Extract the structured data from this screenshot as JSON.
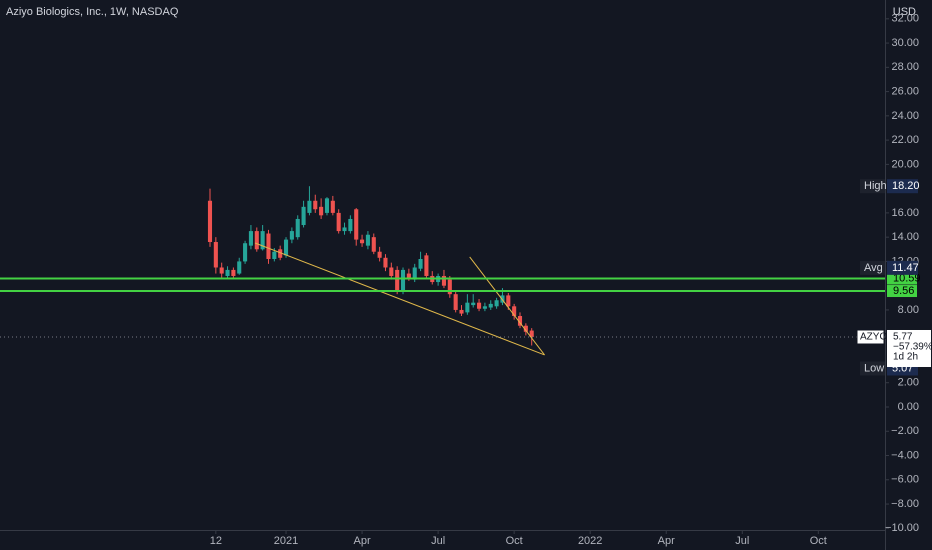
{
  "chart_data": {
    "type": "candlestick",
    "title": "Aziyo Biologics, Inc., 1W, NASDAQ",
    "currency": "USD",
    "x": [
      -1,
      0,
      1,
      2,
      3,
      4,
      5,
      6,
      7,
      8,
      9,
      10,
      11,
      12,
      13,
      14,
      15,
      16,
      17,
      18,
      19,
      20,
      21,
      22,
      23,
      24,
      25,
      26,
      27,
      28,
      29,
      30,
      31,
      32,
      33,
      34,
      35,
      36,
      37,
      38,
      39,
      40,
      41,
      42,
      43,
      44,
      45,
      46,
      47,
      48,
      49,
      50,
      51,
      52,
      53,
      54
    ],
    "open": [
      17.0,
      13.6,
      11.5,
      10.8,
      11.3,
      11.0,
      12.0,
      13.3,
      14.5,
      13.0,
      14.3,
      12.2,
      13.0,
      12.5,
      13.8,
      14.0,
      15.0,
      16.0,
      17.0,
      16.5,
      16.0,
      17.0,
      16.0,
      14.5,
      14.5,
      16.3,
      13.8,
      13.3,
      14.0,
      12.8,
      12.3,
      11.5,
      11.3,
      9.5,
      11.0,
      10.5,
      11.4,
      12.5,
      10.8,
      10.3,
      10.8,
      10.5,
      9.3,
      8.0,
      7.8,
      8.4,
      8.6,
      8.1,
      8.2,
      8.3,
      8.6,
      9.2,
      8.3,
      7.5,
      6.7,
      6.3
    ],
    "high": [
      18.0,
      14.0,
      11.9,
      11.6,
      11.5,
      12.3,
      13.7,
      15.0,
      14.8,
      15.0,
      14.6,
      13.1,
      13.3,
      14.0,
      14.8,
      15.8,
      17.0,
      18.2,
      17.5,
      17.2,
      17.3,
      17.4,
      16.3,
      15.2,
      15.8,
      16.4,
      14.2,
      14.5,
      14.3,
      13.2,
      12.6,
      11.9,
      11.6,
      11.5,
      11.4,
      11.8,
      12.8,
      12.7,
      11.2,
      11.0,
      11.3,
      10.8,
      9.5,
      8.4,
      9.3,
      9.3,
      8.9,
      8.6,
      8.8,
      9.0,
      9.8,
      9.4,
      8.5,
      7.8,
      6.9,
      6.5
    ],
    "low": [
      13.2,
      11.0,
      10.6,
      10.6,
      10.6,
      10.9,
      11.8,
      13.0,
      12.8,
      12.9,
      11.8,
      12.0,
      12.1,
      12.3,
      13.5,
      13.8,
      14.8,
      15.8,
      16.0,
      15.5,
      15.8,
      15.8,
      14.3,
      14.2,
      14.3,
      13.3,
      13.2,
      13.0,
      12.6,
      12.0,
      11.2,
      10.5,
      9.3,
      9.3,
      10.4,
      10.3,
      11.2,
      10.6,
      10.1,
      10.0,
      9.8,
      9.0,
      7.8,
      7.5,
      7.6,
      8.2,
      7.9,
      7.9,
      8.0,
      8.1,
      8.4,
      8.0,
      7.2,
      6.5,
      5.9,
      5.07
    ],
    "close": [
      13.6,
      11.5,
      11.0,
      11.3,
      10.8,
      12.0,
      13.5,
      14.5,
      13.0,
      14.5,
      12.2,
      12.8,
      12.3,
      13.8,
      14.5,
      15.5,
      16.5,
      17.0,
      16.3,
      15.8,
      17.2,
      16.0,
      14.5,
      14.8,
      15.5,
      13.8,
      13.5,
      14.2,
      12.8,
      12.3,
      11.5,
      10.8,
      9.5,
      11.3,
      10.6,
      11.5,
      12.2,
      10.8,
      10.3,
      10.8,
      10.0,
      9.3,
      8.0,
      7.7,
      8.6,
      8.6,
      8.1,
      8.3,
      8.5,
      8.8,
      9.2,
      8.3,
      7.5,
      6.7,
      6.2,
      5.77
    ],
    "up_color": "#26a69a",
    "down_color": "#ef5350",
    "xlim": [
      -36.9,
      114.4
    ],
    "xticks": [
      {
        "value": 0,
        "label": "12"
      },
      {
        "value": 12,
        "label": "2021"
      },
      {
        "value": 25,
        "label": "Apr"
      },
      {
        "value": 38,
        "label": "Jul"
      },
      {
        "value": 51,
        "label": "Oct"
      },
      {
        "value": 64,
        "label": "2022"
      },
      {
        "value": 77,
        "label": "Apr"
      },
      {
        "value": 90,
        "label": "Jul"
      },
      {
        "value": 103,
        "label": "Oct"
      }
    ],
    "ylim": [
      -10.14,
      33.55
    ],
    "yticks": [
      {
        "value": 32,
        "label": "32.00"
      },
      {
        "value": 30,
        "label": "30.00"
      },
      {
        "value": 28,
        "label": "28.00"
      },
      {
        "value": 26,
        "label": "26.00"
      },
      {
        "value": 24,
        "label": "24.00"
      },
      {
        "value": 22,
        "label": "22.00"
      },
      {
        "value": 20,
        "label": "20.00"
      },
      {
        "value": 16,
        "label": "16.00"
      },
      {
        "value": 14,
        "label": "14.00"
      },
      {
        "value": 12,
        "label": "12.00"
      },
      {
        "value": 8,
        "label": "8.00"
      },
      {
        "value": 2,
        "label": "2.00"
      },
      {
        "value": 0,
        "label": "0.00"
      },
      {
        "value": -2,
        "label": "−2.00"
      },
      {
        "value": -4,
        "label": "−4.00"
      },
      {
        "value": -6,
        "label": "−6.00"
      },
      {
        "value": -8,
        "label": "−8.00"
      },
      {
        "value": -10,
        "label": "−10.00"
      }
    ],
    "levels": {
      "values": [
        10.59,
        9.56
      ],
      "color": "#43d243"
    },
    "trendlines": [
      {
        "x": [
          6.7,
          56.2
        ],
        "y": [
          13.52,
          4.29
        ]
      },
      {
        "x": [
          43.4,
          56.2
        ],
        "y": [
          12.37,
          4.29
        ]
      }
    ],
    "trend_color": "#e0b84a",
    "stats": {
      "names": [
        "High",
        "Avg",
        "Low"
      ],
      "values": [
        18.2,
        11.47,
        5.07
      ],
      "value_labels": [
        "18.20",
        "11.47",
        "5.07"
      ]
    },
    "last": {
      "symbol": "AZYO",
      "value": 5.77,
      "change": {
        "value": -57.39,
        "label": "−57.39%"
      },
      "countdown": "1d 2h"
    }
  }
}
